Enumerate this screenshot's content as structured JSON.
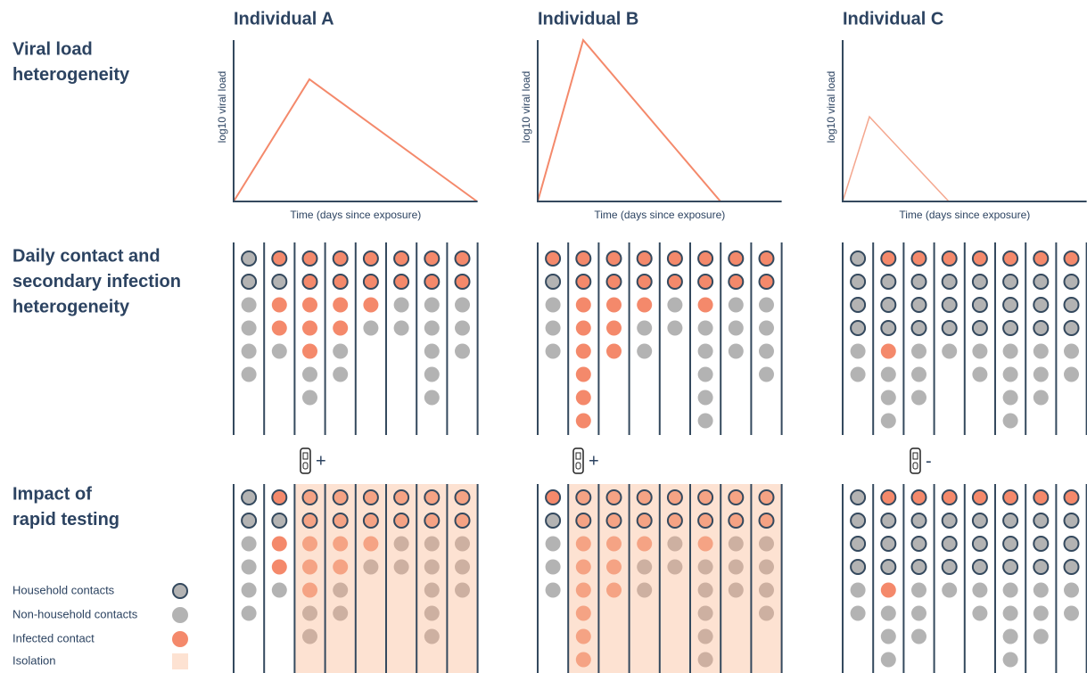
{
  "individuals": [
    "Individual A",
    "Individual B",
    "Individual C"
  ],
  "rows": {
    "viral_load": [
      "Viral load",
      "heterogeneity"
    ],
    "contacts": [
      "Daily contact and",
      "secondary infection",
      "heterogeneity"
    ],
    "testing": [
      "Impact of",
      "rapid testing"
    ]
  },
  "axes": {
    "y_label": "log10 viral load",
    "x_label": "Time (days since exposure)"
  },
  "test_results": [
    "+",
    "+",
    "-"
  ],
  "legend": [
    "Household contacts",
    "Non-household contacts",
    "Infected contact",
    "Isolation"
  ]
}
